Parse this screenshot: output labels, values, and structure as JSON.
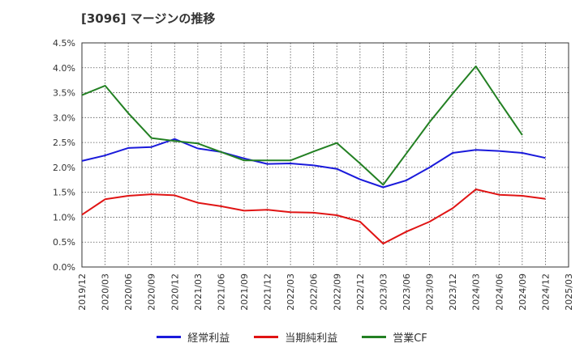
{
  "chart_data": {
    "type": "line",
    "title": "[3096]  マージンの推移",
    "xlabel": "",
    "ylabel": "",
    "ylim": [
      0,
      4.5
    ],
    "y_ticks": [
      "0.0%",
      "0.5%",
      "1.0%",
      "1.5%",
      "2.0%",
      "2.5%",
      "3.0%",
      "3.5%",
      "4.0%",
      "4.5%"
    ],
    "categories": [
      "2019/12",
      "2020/03",
      "2020/06",
      "2020/09",
      "2020/12",
      "2021/03",
      "2021/06",
      "2021/09",
      "2021/12",
      "2022/03",
      "2022/06",
      "2022/09",
      "2022/12",
      "2023/03",
      "2023/06",
      "2023/09",
      "2023/12",
      "2024/03",
      "2024/06",
      "2024/09",
      "2024/12",
      "2025/03"
    ],
    "grid": true,
    "legend_position": "bottom",
    "series": [
      {
        "name": "経常利益",
        "color": "#1a1adb",
        "values": [
          2.13,
          2.24,
          2.39,
          2.41,
          2.57,
          2.38,
          2.31,
          2.18,
          2.07,
          2.08,
          2.04,
          1.97,
          1.76,
          1.6,
          1.74,
          2.0,
          2.29,
          2.35,
          2.33,
          2.29,
          2.19,
          null
        ]
      },
      {
        "name": "当期純利益",
        "color": "#e01414",
        "values": [
          1.05,
          1.36,
          1.43,
          1.46,
          1.44,
          1.29,
          1.22,
          1.13,
          1.15,
          1.1,
          1.09,
          1.04,
          0.91,
          0.47,
          0.71,
          0.91,
          1.18,
          1.56,
          1.45,
          1.43,
          1.37,
          null
        ]
      },
      {
        "name": "営業CF",
        "color": "#238023",
        "values": [
          3.45,
          3.64,
          3.09,
          2.59,
          2.53,
          2.48,
          2.31,
          2.14,
          2.14,
          2.14,
          2.32,
          2.49,
          2.08,
          1.65,
          2.28,
          2.91,
          3.48,
          4.03,
          3.33,
          2.65,
          null,
          null
        ]
      }
    ]
  }
}
